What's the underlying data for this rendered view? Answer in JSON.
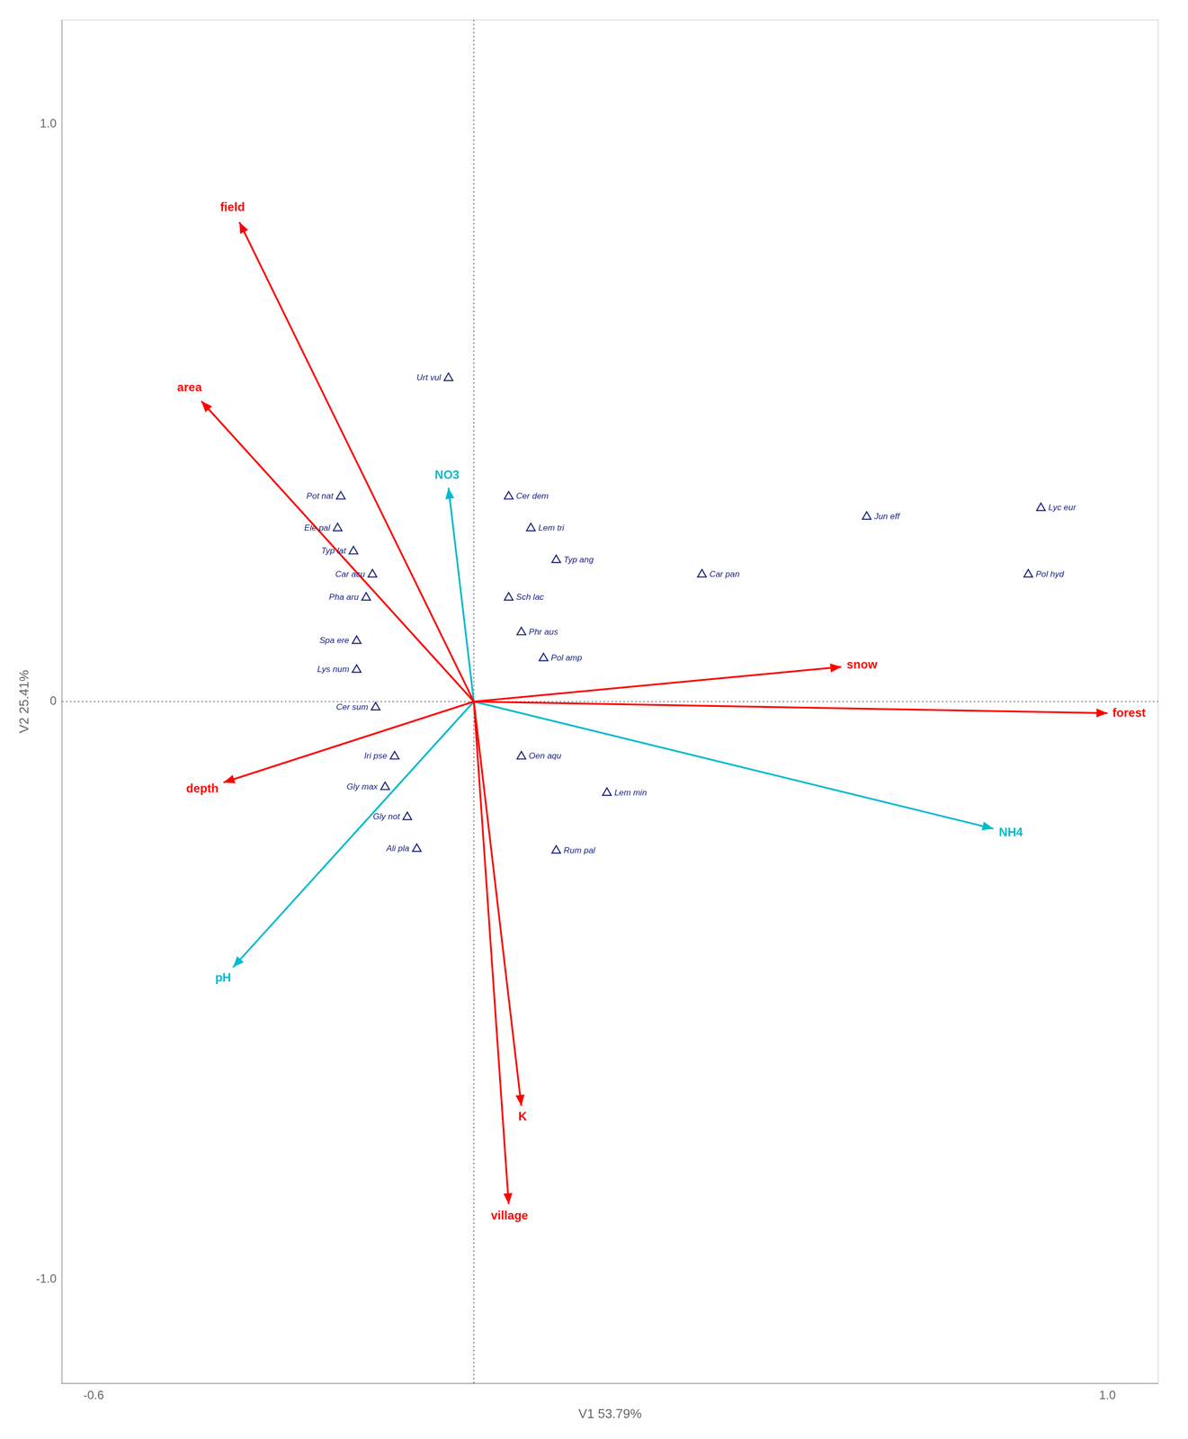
{
  "chart_data": {
    "type": "biplot",
    "xlabel": "V1 53.79%",
    "ylabel": "V2 25.41%",
    "xlim": [
      -0.65,
      1.08
    ],
    "ylim": [
      -1.18,
      1.18
    ],
    "xticks": [
      -0.6,
      {
        "value": 1.0,
        "label": "1.0"
      }
    ],
    "yticks": [
      {
        "value": -1.0,
        "label": "-1.0"
      },
      0,
      {
        "value": 1.0,
        "label": "1.0"
      }
    ],
    "grid": false,
    "origin": [
      0,
      0
    ],
    "arrows": [
      {
        "color": "#FF0000",
        "names": [
          "field",
          "area",
          "snow",
          "forest",
          "depth",
          "village",
          "K"
        ],
        "x": [
          -0.37,
          -0.43,
          0.58,
          1.0,
          -0.395,
          0.055,
          0.075
        ],
        "y": [
          0.83,
          0.52,
          0.06,
          -0.02,
          -0.14,
          -0.87,
          -0.7
        ]
      },
      {
        "color": "#00BBCC",
        "names": [
          "NO3",
          "NH4",
          "pH"
        ],
        "x": [
          -0.04,
          0.82,
          -0.38
        ],
        "y": [
          0.37,
          -0.22,
          -0.46
        ]
      }
    ],
    "points": {
      "color": "#1A237E",
      "marker": "triangle",
      "names": [
        "Urt vul",
        "Pot nat",
        "Ele pal",
        "Typ lat",
        "Car acu",
        "Pha aru",
        "Spa ere",
        "Lys num",
        "Cer sum",
        "Cer dem",
        "Lem tri",
        "Typ ang",
        "Sch lac",
        "Phr aus",
        "Pol amp",
        "Car pan",
        "Jun eff",
        "Lyc eur",
        "Pol hyd",
        "Iri pse",
        "Gly max",
        "Oen aqu",
        "Gly not",
        "Ali pla",
        "Lem min",
        "Rum pal"
      ],
      "x": [
        -0.04,
        -0.21,
        -0.215,
        -0.19,
        -0.16,
        -0.17,
        -0.185,
        -0.185,
        -0.155,
        0.055,
        0.09,
        0.13,
        0.055,
        0.075,
        0.11,
        0.36,
        0.62,
        0.895,
        0.875,
        -0.125,
        -0.14,
        0.075,
        -0.105,
        -0.09,
        0.21,
        0.13
      ],
      "y": [
        0.56,
        0.355,
        0.3,
        0.26,
        0.22,
        0.18,
        0.105,
        0.055,
        -0.01,
        0.355,
        0.3,
        0.245,
        0.18,
        0.12,
        0.075,
        0.22,
        0.32,
        0.335,
        0.22,
        -0.095,
        -0.148,
        -0.095,
        -0.2,
        -0.255,
        -0.158,
        -0.258
      ]
    }
  }
}
